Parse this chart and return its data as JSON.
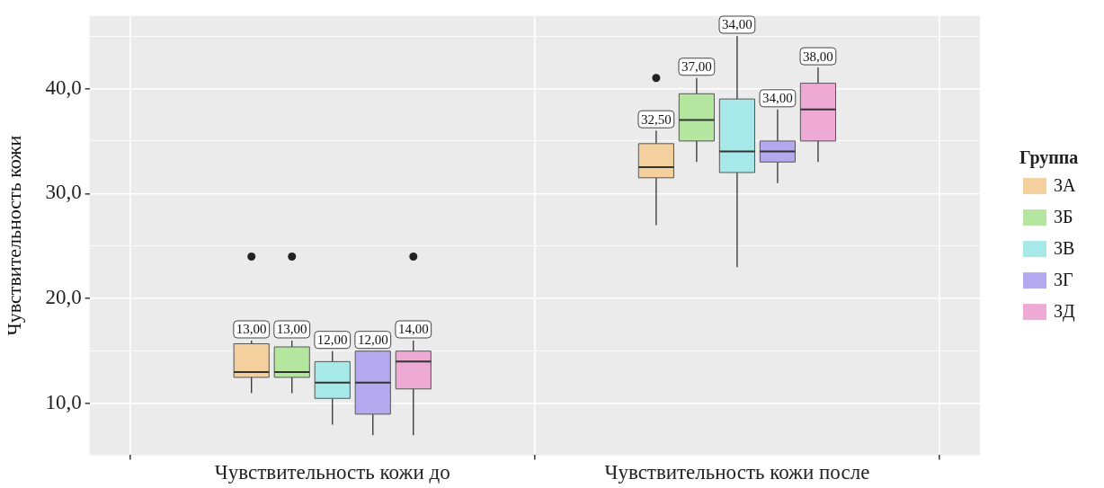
{
  "chart_data": {
    "type": "box",
    "ylabel": "Чувствительность кожи",
    "legend_title": "Группа",
    "categories": [
      "Чувствительность кожи до",
      "Чувствительность кожи после"
    ],
    "series": [
      {
        "name": "3А",
        "color": "#f3d09e",
        "boxes": [
          {
            "low": 11,
            "q1": 12.5,
            "median": 13,
            "q3": 15.7,
            "high": 16,
            "outliers": [
              24
            ]
          },
          {
            "low": 27,
            "q1": 31.5,
            "median": 32.5,
            "q3": 34.75,
            "high": 36,
            "outliers": [
              41
            ]
          }
        ],
        "value_labels": [
          "13,00",
          "32,50"
        ]
      },
      {
        "name": "3Б",
        "color": "#b4e6a0",
        "boxes": [
          {
            "low": 11,
            "q1": 12.5,
            "median": 13,
            "q3": 15.4,
            "high": 16,
            "outliers": [
              24
            ]
          },
          {
            "low": 33,
            "q1": 35,
            "median": 37,
            "q3": 39.5,
            "high": 41
          }
        ],
        "value_labels": [
          "13,00",
          "37,00"
        ]
      },
      {
        "name": "3В",
        "color": "#a6e9e8",
        "boxes": [
          {
            "low": 8,
            "q1": 10.5,
            "median": 12,
            "q3": 14,
            "high": 15
          },
          {
            "low": 23,
            "q1": 32,
            "median": 34,
            "q3": 39,
            "high": 45
          }
        ],
        "value_labels": [
          "12,00",
          "34,00"
        ]
      },
      {
        "name": "3Г",
        "color": "#b4a8ee",
        "boxes": [
          {
            "low": 7,
            "q1": 9,
            "median": 12,
            "q3": 15,
            "high": 15
          },
          {
            "low": 31,
            "q1": 33,
            "median": 34,
            "q3": 35,
            "high": 38
          }
        ],
        "value_labels": [
          "12,00",
          "34,00"
        ]
      },
      {
        "name": "3Д",
        "color": "#eeaad4",
        "boxes": [
          {
            "low": 7,
            "q1": 11.4,
            "median": 14,
            "q3": 15,
            "high": 16,
            "outliers": [
              24
            ]
          },
          {
            "low": 33,
            "q1": 35,
            "median": 38,
            "q3": 40.5,
            "high": 42
          }
        ],
        "value_labels": [
          "14,00",
          "38,00"
        ]
      }
    ],
    "ylim": [
      5.1,
      46.9
    ],
    "yticks": [
      {
        "value": 10,
        "label": "10,0"
      },
      {
        "value": 15,
        "label": null
      },
      {
        "value": 20,
        "label": "20,0"
      },
      {
        "value": 25,
        "label": null
      },
      {
        "value": 30,
        "label": "30,0"
      },
      {
        "value": 35,
        "label": null
      },
      {
        "value": 40,
        "label": "40,0"
      },
      {
        "value": 45,
        "label": null
      }
    ],
    "grid": true,
    "legend": "right"
  }
}
